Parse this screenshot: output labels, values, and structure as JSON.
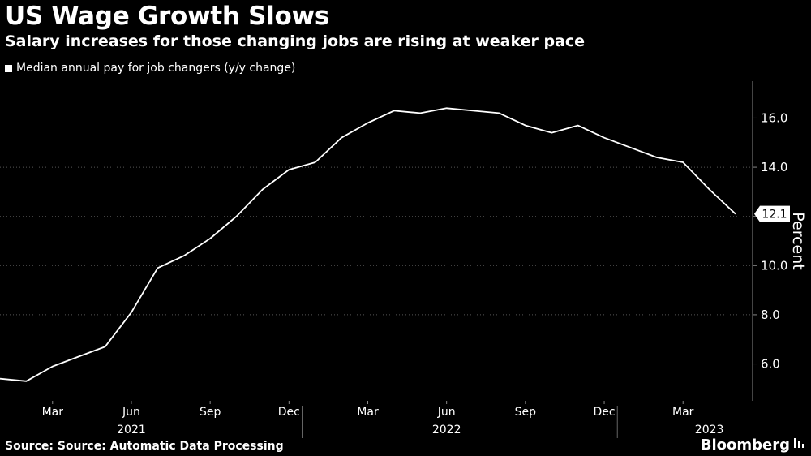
{
  "header": {
    "title": "US Wage Growth Slows",
    "subtitle": "Salary increases for those changing jobs are rising at weaker pace"
  },
  "legend": {
    "label": "Median annual pay for job changers (y/y change)"
  },
  "footer": {
    "source": "Source: Source: Automatic Data Processing",
    "brand": "Bloomberg"
  },
  "colors": {
    "background": "#000000",
    "line": "#ffffff",
    "grid": "#555555"
  },
  "chart_data": {
    "type": "line",
    "ylabel": "Percent",
    "ylim": [
      4.5,
      17.5
    ],
    "y_ticks": [
      6.0,
      8.0,
      10.0,
      12.0,
      14.0,
      16.0
    ],
    "y_tick_labels": [
      "6.0",
      "8.0",
      "10.0",
      "12.0",
      "14.0",
      "16.0"
    ],
    "grid": true,
    "legend_position": "top-left",
    "x": [
      "2021-01",
      "2021-02",
      "2021-03",
      "2021-04",
      "2021-05",
      "2021-06",
      "2021-07",
      "2021-08",
      "2021-09",
      "2021-10",
      "2021-11",
      "2021-12",
      "2022-01",
      "2022-02",
      "2022-03",
      "2022-04",
      "2022-05",
      "2022-06",
      "2022-07",
      "2022-08",
      "2022-09",
      "2022-10",
      "2022-11",
      "2022-12",
      "2023-01",
      "2023-02",
      "2023-03",
      "2023-04",
      "2023-05"
    ],
    "series": [
      {
        "name": "Median annual pay for job changers (y/y change)",
        "values": [
          5.4,
          5.3,
          5.9,
          6.3,
          6.7,
          8.1,
          9.9,
          10.4,
          11.1,
          12.0,
          13.1,
          13.9,
          14.2,
          15.2,
          15.8,
          16.3,
          16.2,
          16.4,
          16.3,
          16.2,
          15.7,
          15.4,
          15.7,
          15.2,
          14.8,
          14.4,
          14.2,
          13.1,
          12.1
        ]
      }
    ],
    "last_value_label": "12.1",
    "x_tick_labels": [
      {
        "date": "2021-03",
        "label": "Mar"
      },
      {
        "date": "2021-06",
        "label": "Jun"
      },
      {
        "date": "2021-09",
        "label": "Sep"
      },
      {
        "date": "2021-12",
        "label": "Dec"
      },
      {
        "date": "2022-03",
        "label": "Mar"
      },
      {
        "date": "2022-06",
        "label": "Jun"
      },
      {
        "date": "2022-09",
        "label": "Sep"
      },
      {
        "date": "2022-12",
        "label": "Dec"
      },
      {
        "date": "2023-03",
        "label": "Mar"
      }
    ],
    "year_labels": [
      {
        "date": "2021-06",
        "label": "2021"
      },
      {
        "date": "2022-06",
        "label": "2022"
      },
      {
        "date": "2023-04",
        "label": "2023"
      }
    ],
    "year_dividers": [
      "2021-12",
      "2022-12"
    ]
  }
}
